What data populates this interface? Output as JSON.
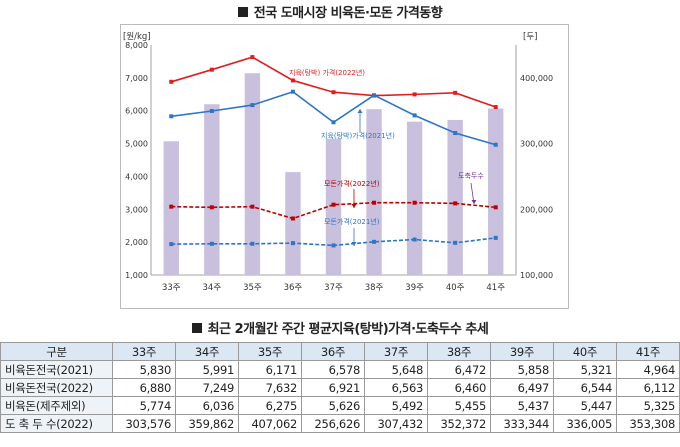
{
  "title_top": "전국 도매시장 비육돈·모돈 가격동향",
  "title_bottom": "최근 2개월간 주간 평균지육(탕박)가격·도축두수 추세",
  "chart_data": {
    "type": "bar-line-combo",
    "categories": [
      "33주",
      "34주",
      "35주",
      "36주",
      "37주",
      "38주",
      "39주",
      "40주",
      "41주"
    ],
    "left_axis": {
      "unit_label": "[원/kg]",
      "ylim": [
        1000,
        8000
      ],
      "ticks": [
        "1,000",
        "2,000",
        "3,000",
        "4,000",
        "5,000",
        "6,000",
        "7,000",
        "8,000"
      ]
    },
    "right_axis": {
      "unit_label": "[두]",
      "ylim": [
        100000,
        450000
      ],
      "ticks": [
        "100,000",
        "200,000",
        "300,000",
        "400,000"
      ]
    },
    "bars": {
      "name": "도축두수",
      "values": [
        303576,
        359862,
        407062,
        256626,
        307432,
        352372,
        333344,
        336005,
        353308
      ],
      "color": "#c9c0dd"
    },
    "series": [
      {
        "name": "지육(탕박) 가격(2022년)",
        "values": [
          6880,
          7249,
          7632,
          6921,
          6563,
          6460,
          6497,
          6544,
          6112
        ],
        "color": "#e01e1e",
        "style": "solid"
      },
      {
        "name": "지육(탕박)가격(2021년)",
        "values": [
          5830,
          5991,
          6171,
          6578,
          5648,
          6472,
          5858,
          5321,
          4964
        ],
        "color": "#2e75c6",
        "style": "solid"
      },
      {
        "name": "모돈가격(2022년)",
        "values": [
          3080,
          3060,
          3080,
          2720,
          3140,
          3200,
          3200,
          3180,
          3060
        ],
        "color": "#c00000",
        "style": "dashed"
      },
      {
        "name": "모돈가격(2021년)",
        "values": [
          1940,
          1950,
          1950,
          1970,
          1900,
          2010,
          2080,
          1980,
          2130
        ],
        "color": "#2e75c6",
        "style": "dashed"
      }
    ],
    "annotations": [
      {
        "text": "지육(탕박) 가격(2022년)",
        "color": "#e01e1e"
      },
      {
        "text": "지육(탕박)가격(2021년)",
        "color": "#2e75c6"
      },
      {
        "text": "모돈가격(2022년)",
        "color": "#c00000"
      },
      {
        "text": "모돈가격(2021년)",
        "color": "#2e75c6"
      },
      {
        "text": "도축두수",
        "color": "#7030a0"
      }
    ]
  },
  "table": {
    "headers": [
      "구분",
      "33주",
      "34주",
      "35주",
      "36주",
      "37주",
      "38주",
      "39주",
      "40주",
      "41주"
    ],
    "rows": [
      [
        "비육돈전국(2021)",
        "5,830",
        "5,991",
        "6,171",
        "6,578",
        "5,648",
        "6,472",
        "5,858",
        "5,321",
        "4,964"
      ],
      [
        "비육돈전국(2022)",
        "6,880",
        "7,249",
        "7,632",
        "6,921",
        "6,563",
        "6,460",
        "6,497",
        "6,544",
        "6,112"
      ],
      [
        "비육돈(제주제외)",
        "5,774",
        "6,036",
        "6,275",
        "5,626",
        "5,492",
        "5,455",
        "5,437",
        "5,447",
        "5,325"
      ],
      [
        "도 축 두 수(2022)",
        "303,576",
        "359,862",
        "407,062",
        "256,626",
        "307,432",
        "352,372",
        "333,344",
        "336,005",
        "353,308"
      ]
    ]
  }
}
